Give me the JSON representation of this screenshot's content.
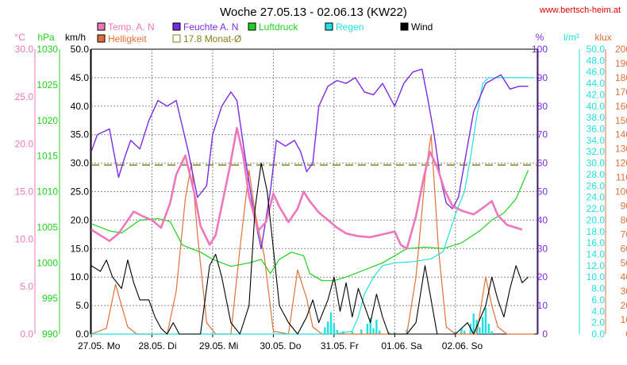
{
  "header": {
    "title": "Woche 27.05.13 - 02.06.13 (KW22)",
    "site": "www.bertsch-heim.at"
  },
  "colors": {
    "temp": "#ee77bb",
    "bright": "#e0703a",
    "humid": "#7a2be0",
    "monat": "#808020",
    "press": "#20d020",
    "rain": "#20e0e0",
    "wind": "#000000",
    "grid": "#888888"
  },
  "chart_data": {
    "type": "line",
    "title": "Woche 27.05.13 - 02.06.13 (KW22)",
    "legend": [
      {
        "key": "temp",
        "label": "Temp. A. N",
        "color": "#ee77bb"
      },
      {
        "key": "bright",
        "label": "Helligkeit",
        "color": "#e0703a"
      },
      {
        "key": "humid",
        "label": "Feuchte A. N",
        "color": "#7a2be0"
      },
      {
        "key": "monat",
        "label": "17.8 Monat-Ø",
        "color": "#808020"
      },
      {
        "key": "press",
        "label": "Luftdruck",
        "color": "#20d020"
      },
      {
        "key": "rain",
        "label": "Regen",
        "color": "#20e0e0"
      },
      {
        "key": "wind",
        "label": "Wind",
        "color": "#000000"
      }
    ],
    "axes": {
      "temp": {
        "unit": "°C",
        "min": 0,
        "max": 30,
        "ticks": [
          "0.0",
          "5.0",
          "10.0",
          "15.0",
          "20.0",
          "25.0",
          "30.0"
        ],
        "color": "#ee77bb"
      },
      "press": {
        "unit": "hPa",
        "min": 990,
        "max": 1030,
        "ticks": [
          "990",
          "995",
          "1000",
          "1005",
          "1010",
          "1015",
          "1020",
          "1025",
          "1030"
        ],
        "color": "#20d020"
      },
      "wind": {
        "unit": "km/h",
        "min": 0,
        "max": 50,
        "ticks": [
          "0.0",
          "5.0",
          "10.0",
          "15.0",
          "20.0",
          "25.0",
          "30.0",
          "35.0",
          "40.0",
          "45.0",
          "50.0"
        ],
        "color": "#000000"
      },
      "humid": {
        "unit": "%",
        "min": 0,
        "max": 100,
        "ticks": [
          "0",
          "10",
          "20",
          "30",
          "40",
          "50",
          "60",
          "70",
          "80",
          "90",
          "100"
        ],
        "color": "#7a2be0"
      },
      "rain": {
        "unit": "l/m²",
        "min": 0,
        "max": 50,
        "ticks": [
          "0.0",
          "2.0",
          "4.0",
          "6.0",
          "8.0",
          "10.0",
          "12.0",
          "14.0",
          "16.0",
          "18.0",
          "20.0",
          "22.0",
          "24.0",
          "26.0",
          "28.0",
          "30.0",
          "32.0",
          "34.0",
          "36.0",
          "38.0",
          "40.0",
          "42.0",
          "44.0",
          "46.0",
          "48.0",
          "50.0"
        ],
        "color": "#20e0e0"
      },
      "bright": {
        "unit": "klux",
        "min": 0,
        "max": 200,
        "ticks": [
          "0",
          "10",
          "20",
          "30",
          "40",
          "50",
          "60",
          "70",
          "80",
          "90",
          "100",
          "110",
          "120",
          "130",
          "140",
          "150",
          "160",
          "170",
          "180",
          "190",
          "200"
        ],
        "color": "#e0703a"
      }
    },
    "x": {
      "labels": [
        "27.05. Mo",
        "28.05. Di",
        "29.05. Mi",
        "30.05. Do",
        "31.05. Fr",
        "01.06. Sa",
        "02.06. So"
      ],
      "days": 7.35
    },
    "grid": true,
    "monthly_avg_temp": 17.8,
    "series": {
      "temp": [
        [
          0,
          11.0
        ],
        [
          0.3,
          9.8
        ],
        [
          0.45,
          10.6
        ],
        [
          0.7,
          12.9
        ],
        [
          0.85,
          12.4
        ],
        [
          1.0,
          12.0
        ],
        [
          1.15,
          11.2
        ],
        [
          1.3,
          13.8
        ],
        [
          1.4,
          16.8
        ],
        [
          1.55,
          18.8
        ],
        [
          1.7,
          14.8
        ],
        [
          1.8,
          11.4
        ],
        [
          1.95,
          9.4
        ],
        [
          2.05,
          10.4
        ],
        [
          2.15,
          13.5
        ],
        [
          2.28,
          17.5
        ],
        [
          2.4,
          21.7
        ],
        [
          2.5,
          18.9
        ],
        [
          2.6,
          14.5
        ],
        [
          2.75,
          10.9
        ],
        [
          2.88,
          11.8
        ],
        [
          3.0,
          14.8
        ],
        [
          3.1,
          13.4
        ],
        [
          3.25,
          11.8
        ],
        [
          3.4,
          13.2
        ],
        [
          3.5,
          15.0
        ],
        [
          3.6,
          14.0
        ],
        [
          3.75,
          12.8
        ],
        [
          3.9,
          12.0
        ],
        [
          4.05,
          11.2
        ],
        [
          4.2,
          10.6
        ],
        [
          4.4,
          10.3
        ],
        [
          4.6,
          10.2
        ],
        [
          4.8,
          10.5
        ],
        [
          5.0,
          10.8
        ],
        [
          5.1,
          9.4
        ],
        [
          5.2,
          9.0
        ],
        [
          5.35,
          12.4
        ],
        [
          5.48,
          16.5
        ],
        [
          5.58,
          19.2
        ],
        [
          5.7,
          17.6
        ],
        [
          5.82,
          15.2
        ],
        [
          5.95,
          13.5
        ],
        [
          6.1,
          13.0
        ],
        [
          6.3,
          12.6
        ],
        [
          6.5,
          13.5
        ],
        [
          6.6,
          14.0
        ],
        [
          6.7,
          12.5
        ],
        [
          6.85,
          11.5
        ],
        [
          7.0,
          11.2
        ],
        [
          7.1,
          11.0
        ]
      ],
      "humid": [
        [
          0,
          64
        ],
        [
          0.1,
          70
        ],
        [
          0.3,
          72
        ],
        [
          0.45,
          55
        ],
        [
          0.55,
          62
        ],
        [
          0.65,
          68
        ],
        [
          0.8,
          65
        ],
        [
          0.95,
          75
        ],
        [
          1.1,
          82
        ],
        [
          1.25,
          80
        ],
        [
          1.4,
          82
        ],
        [
          1.6,
          64
        ],
        [
          1.75,
          48
        ],
        [
          1.9,
          52
        ],
        [
          2.0,
          70
        ],
        [
          2.15,
          80
        ],
        [
          2.3,
          85
        ],
        [
          2.4,
          82
        ],
        [
          2.55,
          60
        ],
        [
          2.7,
          40
        ],
        [
          2.8,
          30
        ],
        [
          2.95,
          50
        ],
        [
          3.05,
          68
        ],
        [
          3.2,
          66
        ],
        [
          3.35,
          68
        ],
        [
          3.45,
          64
        ],
        [
          3.55,
          57
        ],
        [
          3.65,
          60
        ],
        [
          3.75,
          80
        ],
        [
          3.9,
          87
        ],
        [
          4.05,
          89
        ],
        [
          4.2,
          88
        ],
        [
          4.35,
          90
        ],
        [
          4.5,
          85
        ],
        [
          4.65,
          84
        ],
        [
          4.8,
          88
        ],
        [
          5.0,
          80
        ],
        [
          5.15,
          88
        ],
        [
          5.3,
          92
        ],
        [
          5.45,
          93
        ],
        [
          5.55,
          82
        ],
        [
          5.65,
          70
        ],
        [
          5.75,
          55
        ],
        [
          5.85,
          46
        ],
        [
          5.95,
          44
        ],
        [
          6.05,
          48
        ],
        [
          6.15,
          60
        ],
        [
          6.3,
          78
        ],
        [
          6.5,
          88
        ],
        [
          6.75,
          91
        ],
        [
          6.9,
          86
        ],
        [
          7.05,
          87
        ],
        [
          7.2,
          87
        ]
      ],
      "press": [
        [
          0,
          1005.5
        ],
        [
          0.3,
          1004.5
        ],
        [
          0.5,
          1004.2
        ],
        [
          0.8,
          1006.0
        ],
        [
          1.1,
          1006.2
        ],
        [
          1.3,
          1005.8
        ],
        [
          1.5,
          1002.5
        ],
        [
          1.8,
          1001.5
        ],
        [
          2.0,
          1000.5
        ],
        [
          2.3,
          999.5
        ],
        [
          2.6,
          1000.0
        ],
        [
          2.8,
          1000.5
        ],
        [
          2.95,
          998.5
        ],
        [
          3.1,
          1000.5
        ],
        [
          3.3,
          1001.5
        ],
        [
          3.5,
          1001.0
        ],
        [
          3.6,
          998.5
        ],
        [
          3.8,
          997.5
        ],
        [
          4.0,
          997.5
        ],
        [
          4.2,
          998.0
        ],
        [
          4.5,
          999.0
        ],
        [
          4.8,
          1000.0
        ],
        [
          5.0,
          1001.0
        ],
        [
          5.2,
          1002.0
        ],
        [
          5.5,
          1002.2
        ],
        [
          5.8,
          1002.0
        ],
        [
          6.1,
          1002.8
        ],
        [
          6.4,
          1004.5
        ],
        [
          6.6,
          1006.0
        ],
        [
          6.8,
          1007.0
        ],
        [
          7.0,
          1009.0
        ],
        [
          7.2,
          1013.0
        ]
      ],
      "rain": [
        [
          0,
          0
        ],
        [
          4.0,
          0
        ],
        [
          4.3,
          0.5
        ],
        [
          4.4,
          3.0
        ],
        [
          4.5,
          7.0
        ],
        [
          4.65,
          10.0
        ],
        [
          4.8,
          12.0
        ],
        [
          5.0,
          12.5
        ],
        [
          5.3,
          12.7
        ],
        [
          5.6,
          13.2
        ],
        [
          5.8,
          14.5
        ],
        [
          6.0,
          21.0
        ],
        [
          6.15,
          25.0
        ],
        [
          6.25,
          31.0
        ],
        [
          6.35,
          38.0
        ],
        [
          6.45,
          44.0
        ],
        [
          6.55,
          45.0
        ],
        [
          7.3,
          45.0
        ]
      ],
      "wind": [
        [
          0,
          12
        ],
        [
          0.15,
          11
        ],
        [
          0.25,
          13
        ],
        [
          0.35,
          10
        ],
        [
          0.5,
          8
        ],
        [
          0.6,
          13
        ],
        [
          0.7,
          9
        ],
        [
          0.8,
          6
        ],
        [
          0.95,
          6
        ],
        [
          1.05,
          3
        ],
        [
          1.15,
          1
        ],
        [
          1.25,
          0
        ],
        [
          1.35,
          2
        ],
        [
          1.45,
          0
        ],
        [
          1.6,
          0
        ],
        [
          1.8,
          0
        ],
        [
          1.95,
          12
        ],
        [
          2.05,
          14
        ],
        [
          2.15,
          10
        ],
        [
          2.3,
          2
        ],
        [
          2.45,
          0
        ],
        [
          2.6,
          5
        ],
        [
          2.7,
          22
        ],
        [
          2.8,
          30
        ],
        [
          2.9,
          25
        ],
        [
          3.0,
          15
        ],
        [
          3.1,
          5
        ],
        [
          3.25,
          2
        ],
        [
          3.4,
          0
        ],
        [
          3.55,
          3
        ],
        [
          3.65,
          6
        ],
        [
          3.75,
          2
        ],
        [
          3.9,
          6
        ],
        [
          4.0,
          10
        ],
        [
          4.1,
          4
        ],
        [
          4.2,
          9
        ],
        [
          4.3,
          3
        ],
        [
          4.4,
          8
        ],
        [
          4.5,
          5
        ],
        [
          4.6,
          2
        ],
        [
          4.7,
          7
        ],
        [
          4.8,
          3
        ],
        [
          4.9,
          0
        ],
        [
          5.1,
          0
        ],
        [
          5.2,
          0
        ],
        [
          5.35,
          2
        ],
        [
          5.5,
          12
        ],
        [
          5.6,
          6
        ],
        [
          5.7,
          0
        ],
        [
          5.8,
          0
        ],
        [
          6.0,
          0
        ],
        [
          6.2,
          2
        ],
        [
          6.3,
          0
        ],
        [
          6.5,
          5
        ],
        [
          6.6,
          10
        ],
        [
          6.7,
          6
        ],
        [
          6.8,
          3
        ],
        [
          6.9,
          8
        ],
        [
          7.0,
          12
        ],
        [
          7.1,
          9
        ],
        [
          7.2,
          10
        ]
      ],
      "bright": [
        [
          0,
          0
        ],
        [
          0.25,
          4
        ],
        [
          0.4,
          35
        ],
        [
          0.5,
          20
        ],
        [
          0.6,
          5
        ],
        [
          0.75,
          0
        ],
        [
          1.25,
          0
        ],
        [
          1.4,
          30
        ],
        [
          1.55,
          95
        ],
        [
          1.65,
          120
        ],
        [
          1.75,
          70
        ],
        [
          1.9,
          8
        ],
        [
          2.05,
          0
        ],
        [
          2.3,
          0
        ],
        [
          2.45,
          60
        ],
        [
          2.6,
          115
        ],
        [
          2.7,
          85
        ],
        [
          2.85,
          55
        ],
        [
          3.0,
          2
        ],
        [
          3.25,
          0
        ],
        [
          3.4,
          45
        ],
        [
          3.55,
          25
        ],
        [
          3.65,
          5
        ],
        [
          3.8,
          0
        ],
        [
          5.2,
          0
        ],
        [
          5.35,
          40
        ],
        [
          5.5,
          110
        ],
        [
          5.6,
          140
        ],
        [
          5.72,
          60
        ],
        [
          5.85,
          5
        ],
        [
          6.0,
          0
        ],
        [
          6.35,
          0
        ],
        [
          6.5,
          40
        ],
        [
          6.6,
          20
        ],
        [
          6.7,
          5
        ],
        [
          6.85,
          0
        ],
        [
          7.3,
          0
        ]
      ],
      "rain_bars": [
        [
          3.85,
          1.2
        ],
        [
          3.9,
          2.2
        ],
        [
          3.95,
          3.8
        ],
        [
          4.0,
          1.8
        ],
        [
          4.05,
          0.7
        ],
        [
          4.15,
          0.5
        ],
        [
          4.3,
          0.4
        ],
        [
          4.45,
          0.8
        ],
        [
          4.55,
          1.8
        ],
        [
          4.6,
          2.8
        ],
        [
          4.65,
          1.0
        ],
        [
          4.7,
          2.5
        ],
        [
          4.75,
          0.6
        ],
        [
          4.9,
          0.4
        ],
        [
          5.0,
          0.3
        ],
        [
          5.2,
          0.8
        ],
        [
          6.0,
          0.5
        ],
        [
          6.1,
          1.0
        ],
        [
          6.15,
          0.6
        ],
        [
          6.25,
          1.8
        ],
        [
          6.3,
          3.6
        ],
        [
          6.35,
          2.5
        ],
        [
          6.4,
          1.2
        ],
        [
          6.45,
          3.0
        ],
        [
          6.5,
          4.6
        ],
        [
          6.55,
          1.8
        ],
        [
          6.6,
          0.5
        ]
      ]
    }
  }
}
